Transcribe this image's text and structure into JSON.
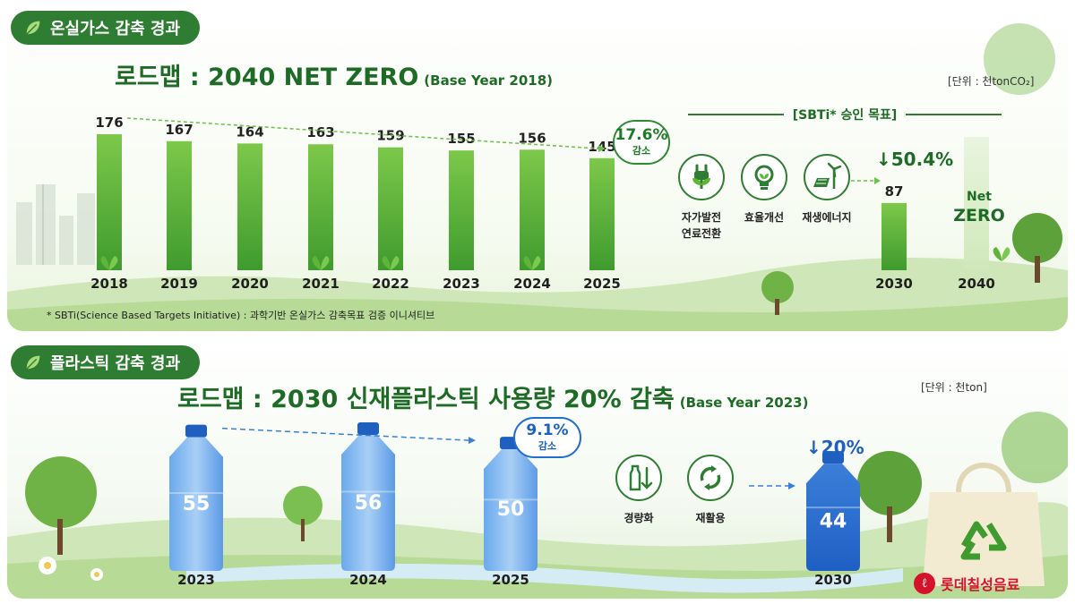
{
  "ghg": {
    "section_label": "온실가스 감축 경과",
    "title": "로드맵 : 2040 NET ZERO",
    "title_sub": "(Base Year 2018)",
    "unit": "[단위 : 천tonCO₂]",
    "reduction_pct": "17.6%",
    "reduction_label": "감소",
    "sbti_header": "[SBTi* 승인 목표]",
    "initiatives": [
      {
        "label": "자가발전\n연료전환",
        "icon": "plug-plant-icon"
      },
      {
        "label": "효율개선",
        "icon": "lightbulb-icon"
      },
      {
        "label": "재생에너지",
        "icon": "solar-wind-icon"
      }
    ],
    "target_2030_pct": "↓50.4%",
    "target_2030_value": "87",
    "target_2030_year": "2030",
    "target_2040_line1": "Net",
    "target_2040_line2": "ZERO",
    "target_2040_year": "2040",
    "footnote": "* SBTi(Science Based Targets Initiative) : 과학기반 온실가스 감축목표 검증 이니셔티브"
  },
  "plastic": {
    "section_label": "플라스틱 감축 경과",
    "title": "로드맵 : 2030 신재플라스틱 사용량 20% 감축",
    "title_sub": "(Base Year 2023)",
    "unit": "[단위 : 천ton]",
    "reduction_pct": "9.1%",
    "reduction_label": "감소",
    "initiatives": [
      {
        "label": "경량화",
        "icon": "light-bottle-icon"
      },
      {
        "label": "재활용",
        "icon": "recycle-icon"
      }
    ],
    "target_2030_pct": "↓20%",
    "target_2030_value": "44",
    "target_2030_year": "2030"
  },
  "brand": {
    "name": "롯데칠성음료",
    "mark": "ℓ"
  },
  "colors": {
    "green": "#5fb43a",
    "dark_green": "#2f7d32",
    "blue": "#4a8fe0"
  },
  "chart_data": [
    {
      "type": "bar",
      "title": "로드맵 : 2040 NET ZERO",
      "categories": [
        "2018",
        "2019",
        "2020",
        "2021",
        "2022",
        "2023",
        "2024",
        "2025"
      ],
      "values": [
        176,
        167,
        164,
        163,
        159,
        155,
        156,
        145
      ],
      "targets": [
        {
          "x": "2030",
          "value": 87
        },
        {
          "x": "2040",
          "value": 0
        }
      ]
    },
    {
      "type": "bar",
      "title": "로드맵 : 2030 신재플라스틱 사용량 20% 감축",
      "categories": [
        "2023",
        "2024",
        "2025"
      ],
      "values": [
        55,
        56,
        50
      ],
      "targets": [
        {
          "x": "2030",
          "value": 44
        }
      ]
    }
  ]
}
